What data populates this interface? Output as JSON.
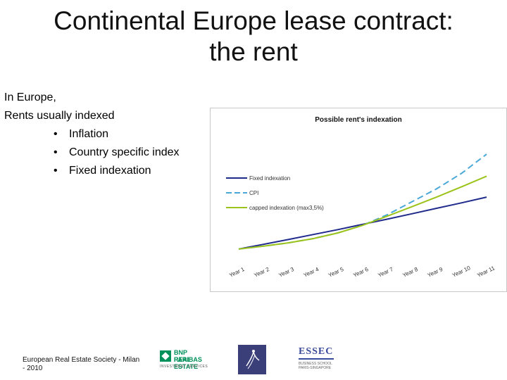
{
  "slide": {
    "title_line1": "Continental Europe lease contract:",
    "title_line2": "the rent",
    "body": {
      "line1": "In Europe,",
      "line2": "Rents usually indexed",
      "bullets": [
        "Inflation",
        "Country specific index",
        "Fixed indexation"
      ],
      "bullet_char": "•"
    },
    "footer": {
      "line1": "European Real Estate Society - Milan",
      "line2": "- 2010"
    },
    "logos": {
      "bnp_line1": "BNP PARIBAS",
      "bnp_line2": "REAL ESTATE",
      "bnp_line3": "INVESTMENT SERVICES",
      "essec_name": "ESSEC",
      "essec_line1": "BUSINESS SCHOOL",
      "essec_line2": "PARIS-SINGAPORE",
      "colors": {
        "bnp_green": "#00915a",
        "erel_navy": "#3a3f7a",
        "essec_blue": "#3a4a9a"
      }
    }
  },
  "chart_data": {
    "type": "line",
    "title": "Possible rent's indexation",
    "categories": [
      "Year 1",
      "Year 2",
      "Year 3",
      "Year 4",
      "Year 5",
      "Year 6",
      "Year 7",
      "Year 8",
      "Year 9",
      "Year 10",
      "Year 11"
    ],
    "series": [
      {
        "name": "Fixed indexation",
        "color": "#1f2a8c",
        "dashed": false,
        "values": [
          1.0,
          1.02,
          1.04,
          1.061,
          1.082,
          1.104,
          1.126,
          1.149,
          1.172,
          1.195,
          1.219
        ]
      },
      {
        "name": "CPI",
        "color": "#4aa8d8",
        "dashed": true,
        "values": [
          1.0,
          1.012,
          1.026,
          1.044,
          1.068,
          1.1,
          1.145,
          1.2,
          1.255,
          1.32,
          1.4
        ]
      },
      {
        "name": "capped indexation (max3,5%)",
        "color": "#9cc31a",
        "dashed": false,
        "values": [
          1.0,
          1.012,
          1.026,
          1.044,
          1.068,
          1.1,
          1.139,
          1.179,
          1.22,
          1.263,
          1.307
        ]
      }
    ],
    "ylim": [
      0.97,
      1.43
    ],
    "legend_position": "upper-left",
    "grid": false
  }
}
